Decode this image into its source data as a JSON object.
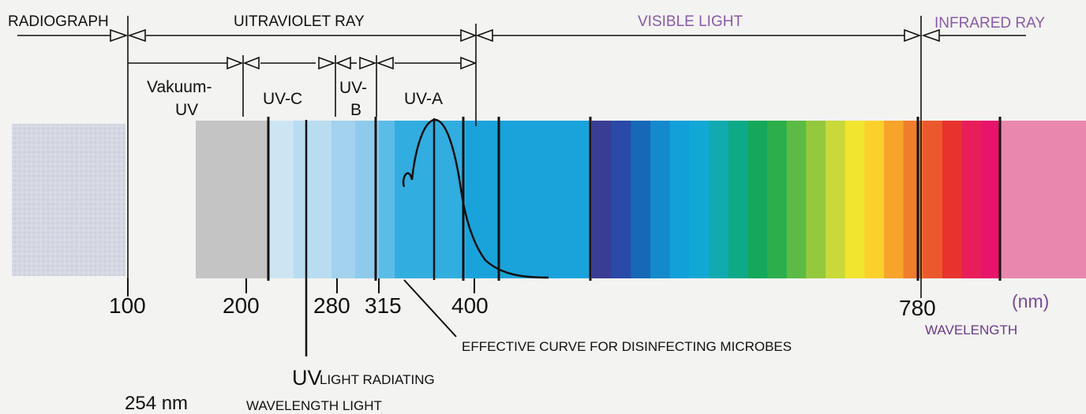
{
  "regions": {
    "radiograph": "RADIOGRAPH",
    "ultraviolet": "UITRAVIOLET RAY",
    "visible": "VISIBLE LIGHT",
    "infrared": "INFRARED RAY"
  },
  "uv_bands": {
    "vacuum_line1": "Vakuum-",
    "vacuum_line2": "UV",
    "uvc": "UV-C",
    "uvb_line1": "UV-",
    "uvb_line2": "B",
    "uva": "UV-A"
  },
  "ticks": [
    "100",
    "200",
    "280",
    "315",
    "400",
    "780"
  ],
  "unit": "(nm)",
  "wavelength_label": "WAVELENGTH",
  "curve_label": "EFFECTIVE CURVE FOR DISINFECTING MICROBES",
  "uv_lamp": {
    "uv": "UV",
    "line1": "LIGHT RADIATING",
    "value": "254 nm",
    "line2": "WAVELENGTH LIGHT"
  },
  "colors": {
    "visible_label": "#8a5aa8",
    "uv_gray": "#c4c4c4",
    "infrared_pink": "#e987ae",
    "line": "#111111"
  }
}
